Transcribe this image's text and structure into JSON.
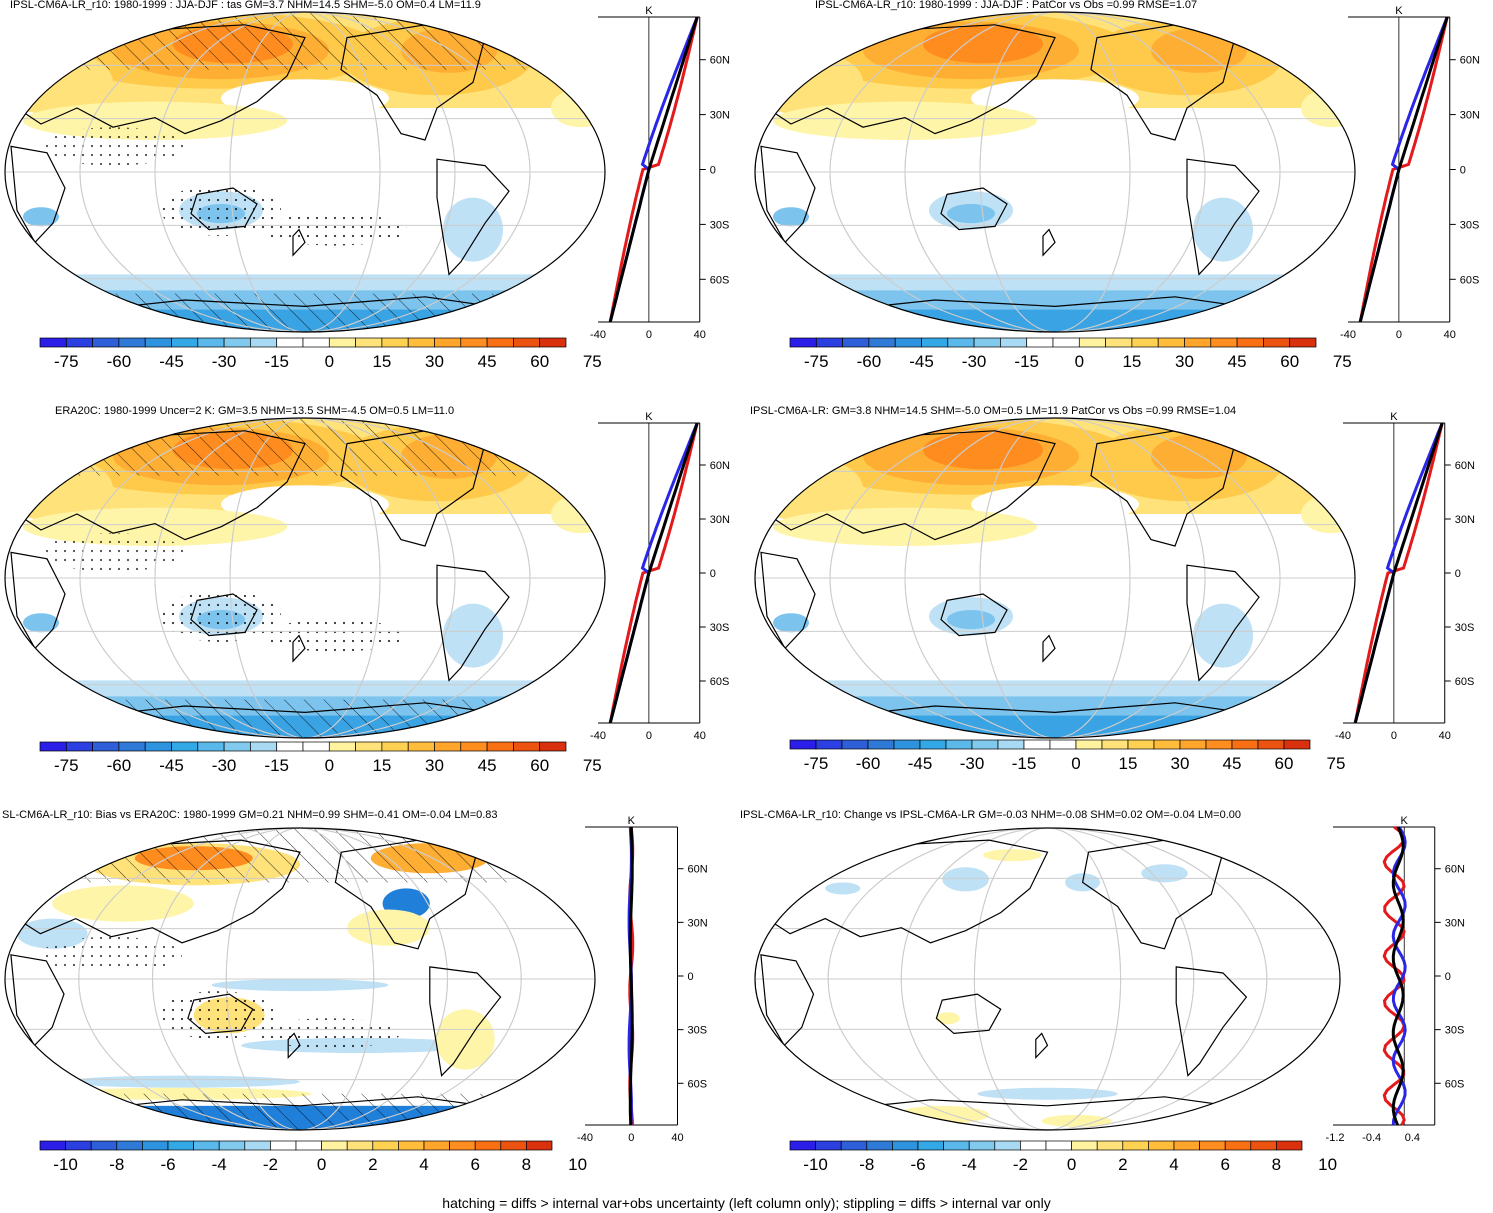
{
  "footnote": "hatching = diffs > internal var+obs uncertainty (left column only); stippling = diffs > internal var only",
  "colors": {
    "warm": [
      "#fff5a8",
      "#ffe27a",
      "#ffc94a",
      "#ffae34",
      "#ff8c1f",
      "#f2600f",
      "#d83a10"
    ],
    "cool": [
      "#bfe1f5",
      "#7cc4ee",
      "#3aa3e4",
      "#1f7fd9",
      "#2555cc"
    ],
    "zonal_model": "#2a26e6",
    "zonal_obs": "#e31a1c",
    "zonal_mean": "#000000"
  },
  "scales": {
    "main": [
      "-75",
      "-60",
      "-45",
      "-30",
      "-15",
      "0",
      "15",
      "30",
      "45",
      "60",
      "75"
    ],
    "diff": [
      "-10",
      "-8",
      "-6",
      "-4",
      "-2",
      "0",
      "2",
      "4",
      "6",
      "8",
      "10"
    ]
  },
  "zonal_common": {
    "lat_labels": [
      "60N",
      "30N",
      "0",
      "30S",
      "60S"
    ],
    "unit": "K"
  },
  "panels": [
    {
      "id": "model-r10",
      "title": "IPSL-CM6A-LR_r10: 1980-1999 : JJA-DJF : tas GM=3.7 NHM=14.5 SHM=-5.0 OM=0.4 LM=11.9",
      "colorbar": "main",
      "hatch": true,
      "stipple": true,
      "field": "jja",
      "zonal_xticks": [
        "-40",
        "0",
        "40"
      ]
    },
    {
      "id": "model-r10-patcor",
      "title": "IPSL-CM6A-LR_r10: 1980-1999 : JJA-DJF : PatCor vs Obs =0.99 RMSE=1.07",
      "colorbar": "main",
      "hatch": false,
      "stipple": false,
      "field": "jja",
      "zonal_xticks": [
        "-40",
        "0",
        "40"
      ]
    },
    {
      "id": "era20c",
      "title": "ERA20C: 1980-1999 Uncer=2 K: GM=3.5 NHM=13.5 SHM=-4.5 OM=0.5 LM=11.0",
      "colorbar": "main",
      "hatch": true,
      "stipple": true,
      "field": "jja",
      "zonal_xticks": [
        "-40",
        "0",
        "40"
      ]
    },
    {
      "id": "ensemble",
      "title": "IPSL-CM6A-LR: GM=3.8 NHM=14.5 SHM=-5.0 OM=0.5 LM=11.9 PatCor vs Obs =0.99 RMSE=1.04",
      "colorbar": "main",
      "hatch": false,
      "stipple": false,
      "field": "jja",
      "zonal_xticks": [
        "-40",
        "0",
        "40"
      ]
    },
    {
      "id": "bias",
      "title": "SL-CM6A-LR_r10: Bias vs ERA20C: 1980-1999 GM=0.21 NHM=0.99 SHM=-0.41 OM=-0.04 LM=0.83",
      "colorbar": "diff",
      "hatch": true,
      "stipple": true,
      "field": "bias",
      "zonal_xticks": [
        "-40",
        "0",
        "40"
      ]
    },
    {
      "id": "change",
      "title": "IPSL-CM6A-LR_r10: Change vs IPSL-CM6A-LR GM=-0.03 NHM=-0.08 SHM=0.02 OM=-0.04 LM=0.00",
      "colorbar": "diff",
      "hatch": false,
      "stipple": false,
      "field": "change",
      "zonal_xticks": [
        "-1.2",
        "-0.4",
        "0.4"
      ]
    }
  ]
}
